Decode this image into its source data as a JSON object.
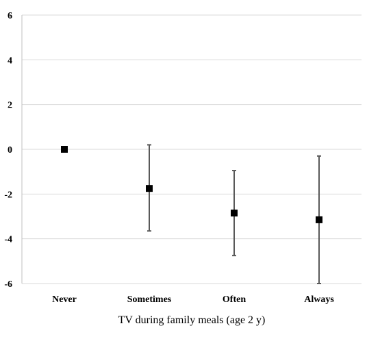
{
  "chart_data": {
    "type": "scatter",
    "title": "",
    "xlabel": "TV during family meals (age 2 y)",
    "ylabel": "",
    "categories": [
      "Never",
      "Sometimes",
      "Often",
      "Always"
    ],
    "values": [
      0,
      -1.75,
      -2.85,
      -3.15
    ],
    "error_low": [
      0,
      -3.65,
      -4.75,
      -6.0
    ],
    "error_high": [
      0,
      0.2,
      -0.95,
      -0.3
    ],
    "ylim": [
      -6,
      6
    ],
    "yticks": [
      6,
      4,
      2,
      0,
      -2,
      -4,
      -6
    ],
    "ytick_labels": [
      "6",
      "4",
      "2",
      "0",
      "-2",
      "-4",
      "-6"
    ],
    "grid": true,
    "legend": "none",
    "colors": {
      "marker": "#000000",
      "errorbar": "#595959",
      "grid": "#d9d9d9",
      "axis": "#bfbfbf"
    }
  }
}
